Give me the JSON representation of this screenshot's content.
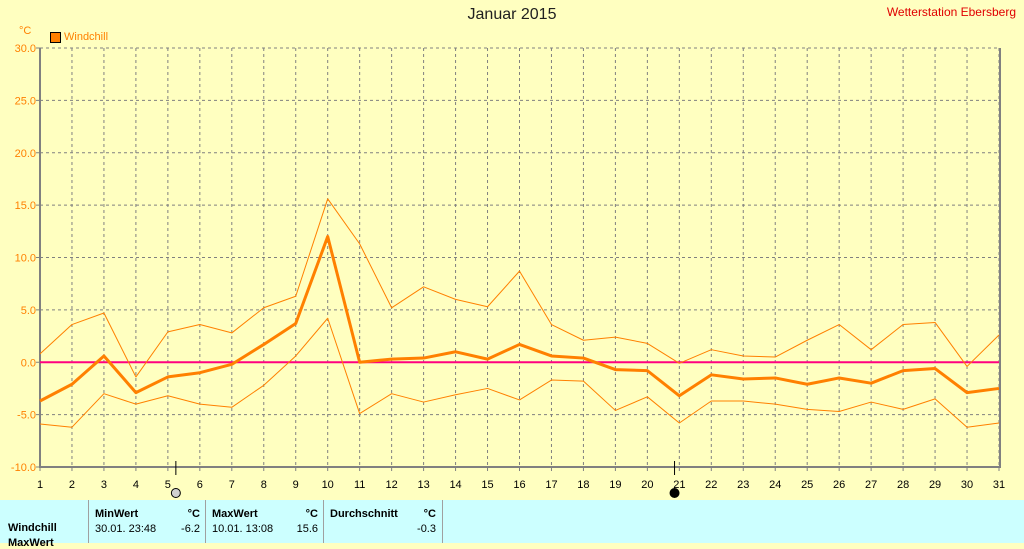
{
  "chart_data": {
    "type": "line",
    "title": "Januar 2015",
    "station": "Wetterstation Ebersberg",
    "ylabel": "°C",
    "ylim": [
      -10,
      30
    ],
    "yticks": [
      "30.0",
      "25.0",
      "20.0",
      "15.0",
      "10.0",
      "5.0",
      "0.0",
      "-5.0",
      "-10.0"
    ],
    "ytick_values": [
      30,
      25,
      20,
      15,
      10,
      5,
      0,
      -5,
      -10
    ],
    "x": [
      1,
      2,
      3,
      4,
      5,
      6,
      7,
      8,
      9,
      10,
      11,
      12,
      13,
      14,
      15,
      16,
      17,
      18,
      19,
      20,
      21,
      22,
      23,
      24,
      25,
      26,
      27,
      28,
      29,
      30,
      31
    ],
    "grid": true,
    "legend": {
      "label": "Windchill",
      "placement": "top-left"
    },
    "series": [
      {
        "name": "Windchill",
        "role": "mean",
        "values": [
          -3.7,
          -2.1,
          0.6,
          -2.9,
          -1.4,
          -1.0,
          -0.2,
          1.7,
          3.7,
          12.0,
          0.0,
          0.3,
          0.4,
          1.0,
          0.3,
          1.7,
          0.6,
          0.4,
          -0.7,
          -0.8,
          -3.2,
          -1.2,
          -1.6,
          -1.5,
          -2.1,
          -1.5,
          -2.0,
          -0.8,
          -0.6,
          -2.9,
          -2.5
        ]
      },
      {
        "name": "Windchill max",
        "role": "max",
        "values": [
          0.8,
          3.6,
          4.7,
          -1.4,
          2.9,
          3.6,
          2.8,
          5.2,
          6.3,
          15.6,
          11.3,
          5.2,
          7.2,
          6.0,
          5.3,
          8.7,
          3.6,
          2.1,
          2.4,
          1.8,
          -0.1,
          1.2,
          0.6,
          0.5,
          2.1,
          3.6,
          1.2,
          3.6,
          3.8,
          -0.4,
          2.6
        ]
      },
      {
        "name": "Windchill min",
        "role": "min",
        "values": [
          -5.9,
          -6.2,
          -3.0,
          -4.0,
          -3.2,
          -4.0,
          -4.3,
          -2.2,
          0.6,
          4.2,
          -4.9,
          -3.0,
          -3.8,
          -3.1,
          -2.5,
          -3.6,
          -1.7,
          -1.8,
          -4.6,
          -3.3,
          -5.8,
          -3.7,
          -3.7,
          -4.0,
          -4.5,
          -4.7,
          -3.8,
          -4.5,
          -3.5,
          -6.2,
          -5.8
        ]
      }
    ],
    "moon_phases": [
      {
        "phase": "full-moon",
        "day": 5.25
      },
      {
        "phase": "new-moon",
        "day": 20.85
      }
    ],
    "colors": {
      "series": "#ff8000",
      "zero": "#ff0080",
      "grid": "#808080",
      "background": "#ffffc0"
    }
  },
  "stats": {
    "headers": {
      "min": "MinWert",
      "max": "MaxWert",
      "avg": "Durchschnitt",
      "unit": "°C"
    },
    "rows": [
      {
        "label": "Windchill",
        "min_time": "30.01.  23:48",
        "min": "-6.2",
        "max_time": "10.01.  13:08",
        "max": "15.6",
        "avg": "-0.3"
      }
    ],
    "cut_row_label": "MaxWert"
  }
}
